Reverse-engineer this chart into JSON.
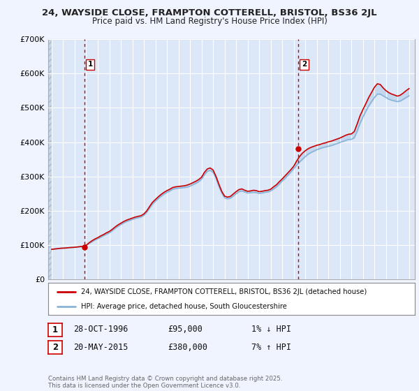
{
  "title_line1": "24, WAYSIDE CLOSE, FRAMPTON COTTERELL, BRISTOL, BS36 2JL",
  "title_line2": "Price paid vs. HM Land Registry's House Price Index (HPI)",
  "bg_color": "#f0f4ff",
  "plot_bg_color": "#dce8f8",
  "hatch_bg_color": "#c8d8ee",
  "grid_color": "#ffffff",
  "hpi_color": "#8ab4d8",
  "price_color": "#cc0000",
  "marker_color": "#cc0000",
  "vline_color": "#cc0000",
  "ylim": [
    0,
    700000
  ],
  "yticks": [
    0,
    100000,
    200000,
    300000,
    400000,
    500000,
    600000,
    700000
  ],
  "ytick_labels": [
    "£0",
    "£100K",
    "£200K",
    "£300K",
    "£400K",
    "£500K",
    "£600K",
    "£700K"
  ],
  "xlim_start": 1993.7,
  "xlim_end": 2025.5,
  "data_start": 1994.0,
  "xticks": [
    1994,
    1995,
    1996,
    1997,
    1998,
    1999,
    2000,
    2001,
    2002,
    2003,
    2004,
    2005,
    2006,
    2007,
    2008,
    2009,
    2010,
    2011,
    2012,
    2013,
    2014,
    2015,
    2016,
    2017,
    2018,
    2019,
    2020,
    2021,
    2022,
    2023,
    2024,
    2025
  ],
  "sale1_x": 1996.83,
  "sale1_y": 95000,
  "sale2_x": 2015.38,
  "sale2_y": 380000,
  "legend_line1": "24, WAYSIDE CLOSE, FRAMPTON COTTERELL, BRISTOL, BS36 2JL (detached house)",
  "legend_line2": "HPI: Average price, detached house, South Gloucestershire",
  "annotation1_label": "1",
  "annotation2_label": "2",
  "table_row1": [
    "1",
    "28-OCT-1996",
    "£95,000",
    "1% ↓ HPI"
  ],
  "table_row2": [
    "2",
    "20-MAY-2015",
    "£380,000",
    "7% ↑ HPI"
  ],
  "footnote": "Contains HM Land Registry data © Crown copyright and database right 2025.\nThis data is licensed under the Open Government Licence v3.0.",
  "hpi_data_x": [
    1994.0,
    1994.25,
    1994.5,
    1994.75,
    1995.0,
    1995.25,
    1995.5,
    1995.75,
    1996.0,
    1996.25,
    1996.5,
    1996.75,
    1997.0,
    1997.25,
    1997.5,
    1997.75,
    1998.0,
    1998.25,
    1998.5,
    1998.75,
    1999.0,
    1999.25,
    1999.5,
    1999.75,
    2000.0,
    2000.25,
    2000.5,
    2000.75,
    2001.0,
    2001.25,
    2001.5,
    2001.75,
    2002.0,
    2002.25,
    2002.5,
    2002.75,
    2003.0,
    2003.25,
    2003.5,
    2003.75,
    2004.0,
    2004.25,
    2004.5,
    2004.75,
    2005.0,
    2005.25,
    2005.5,
    2005.75,
    2006.0,
    2006.25,
    2006.5,
    2006.75,
    2007.0,
    2007.25,
    2007.5,
    2007.75,
    2008.0,
    2008.25,
    2008.5,
    2008.75,
    2009.0,
    2009.25,
    2009.5,
    2009.75,
    2010.0,
    2010.25,
    2010.5,
    2010.75,
    2011.0,
    2011.25,
    2011.5,
    2011.75,
    2012.0,
    2012.25,
    2012.5,
    2012.75,
    2013.0,
    2013.25,
    2013.5,
    2013.75,
    2014.0,
    2014.25,
    2014.5,
    2014.75,
    2015.0,
    2015.25,
    2015.5,
    2015.75,
    2016.0,
    2016.25,
    2016.5,
    2016.75,
    2017.0,
    2017.25,
    2017.5,
    2017.75,
    2018.0,
    2018.25,
    2018.5,
    2018.75,
    2019.0,
    2019.25,
    2019.5,
    2019.75,
    2020.0,
    2020.25,
    2020.5,
    2020.75,
    2021.0,
    2021.25,
    2021.5,
    2021.75,
    2022.0,
    2022.25,
    2022.5,
    2022.75,
    2023.0,
    2023.25,
    2023.5,
    2023.75,
    2024.0,
    2024.25,
    2024.5,
    2024.75,
    2025.0
  ],
  "hpi_data_y": [
    88000,
    89000,
    90000,
    91000,
    91500,
    92000,
    93000,
    93500,
    94000,
    95000,
    96000,
    97000,
    100000,
    105000,
    110000,
    115000,
    119000,
    123000,
    128000,
    132000,
    136000,
    142000,
    149000,
    155000,
    160000,
    165000,
    169000,
    172000,
    175000,
    178000,
    180000,
    182000,
    187000,
    196000,
    208000,
    220000,
    228000,
    236000,
    243000,
    249000,
    254000,
    258000,
    263000,
    265000,
    266000,
    267000,
    268000,
    269000,
    272000,
    276000,
    280000,
    285000,
    292000,
    305000,
    315000,
    318000,
    312000,
    295000,
    272000,
    252000,
    238000,
    235000,
    237000,
    243000,
    250000,
    256000,
    258000,
    255000,
    252000,
    253000,
    254000,
    253000,
    251000,
    252000,
    254000,
    255000,
    258000,
    264000,
    270000,
    278000,
    287000,
    295000,
    304000,
    313000,
    323000,
    333000,
    342000,
    350000,
    358000,
    365000,
    370000,
    374000,
    378000,
    381000,
    384000,
    386000,
    388000,
    390000,
    393000,
    396000,
    399000,
    402000,
    405000,
    408000,
    408000,
    413000,
    432000,
    455000,
    473000,
    490000,
    505000,
    518000,
    530000,
    540000,
    540000,
    535000,
    530000,
    525000,
    522000,
    520000,
    518000,
    520000,
    525000,
    530000,
    535000
  ],
  "price_data_x": [
    1994.0,
    1994.25,
    1994.5,
    1994.75,
    1995.0,
    1995.25,
    1995.5,
    1995.75,
    1996.0,
    1996.25,
    1996.5,
    1996.75,
    1997.0,
    1997.25,
    1997.5,
    1997.75,
    1998.0,
    1998.25,
    1998.5,
    1998.75,
    1999.0,
    1999.25,
    1999.5,
    1999.75,
    2000.0,
    2000.25,
    2000.5,
    2000.75,
    2001.0,
    2001.25,
    2001.5,
    2001.75,
    2002.0,
    2002.25,
    2002.5,
    2002.75,
    2003.0,
    2003.25,
    2003.5,
    2003.75,
    2004.0,
    2004.25,
    2004.5,
    2004.75,
    2005.0,
    2005.25,
    2005.5,
    2005.75,
    2006.0,
    2006.25,
    2006.5,
    2006.75,
    2007.0,
    2007.25,
    2007.5,
    2007.75,
    2008.0,
    2008.25,
    2008.5,
    2008.75,
    2009.0,
    2009.25,
    2009.5,
    2009.75,
    2010.0,
    2010.25,
    2010.5,
    2010.75,
    2011.0,
    2011.25,
    2011.5,
    2011.75,
    2012.0,
    2012.25,
    2012.5,
    2012.75,
    2013.0,
    2013.25,
    2013.5,
    2013.75,
    2014.0,
    2014.25,
    2014.5,
    2014.75,
    2015.0,
    2015.25,
    2015.5,
    2015.75,
    2016.0,
    2016.25,
    2016.5,
    2016.75,
    2017.0,
    2017.25,
    2017.5,
    2017.75,
    2018.0,
    2018.25,
    2018.5,
    2018.75,
    2019.0,
    2019.25,
    2019.5,
    2019.75,
    2020.0,
    2020.25,
    2020.5,
    2020.75,
    2021.0,
    2021.25,
    2021.5,
    2021.75,
    2022.0,
    2022.25,
    2022.5,
    2022.75,
    2023.0,
    2023.25,
    2023.5,
    2023.75,
    2024.0,
    2024.25,
    2024.5,
    2024.75,
    2025.0
  ],
  "price_data_y": [
    88000,
    89000,
    90000,
    91000,
    91500,
    92000,
    93000,
    93500,
    94000,
    95000,
    96000,
    97000,
    100000,
    107000,
    113000,
    118000,
    122000,
    127000,
    131000,
    136000,
    140000,
    146000,
    153000,
    159000,
    164000,
    169000,
    173000,
    176000,
    179000,
    182000,
    184000,
    186000,
    191000,
    200000,
    213000,
    225000,
    233000,
    241000,
    248000,
    254000,
    259000,
    263000,
    268000,
    270000,
    271000,
    272000,
    273000,
    275000,
    278000,
    282000,
    286000,
    291000,
    298000,
    312000,
    322000,
    325000,
    319000,
    301000,
    278000,
    257000,
    243000,
    240000,
    242000,
    249000,
    256000,
    262000,
    264000,
    260000,
    257000,
    258000,
    260000,
    259000,
    256000,
    257000,
    259000,
    260000,
    263000,
    270000,
    276000,
    285000,
    293000,
    302000,
    311000,
    320000,
    330000,
    345000,
    358000,
    368000,
    375000,
    381000,
    385000,
    388000,
    391000,
    393000,
    396000,
    398000,
    401000,
    403000,
    406000,
    409000,
    412000,
    416000,
    420000,
    423000,
    424000,
    431000,
    453000,
    477000,
    495000,
    512000,
    530000,
    545000,
    560000,
    570000,
    568000,
    558000,
    550000,
    544000,
    540000,
    537000,
    534000,
    537000,
    543000,
    550000,
    556000
  ]
}
